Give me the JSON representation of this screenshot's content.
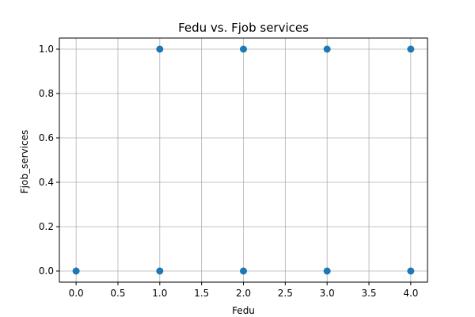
{
  "chart_data": {
    "type": "scatter",
    "title": "Fedu vs. Fjob services",
    "xlabel": "Fedu",
    "ylabel": "Fjob_services",
    "xlim": [
      -0.2,
      4.2
    ],
    "ylim": [
      -0.05,
      1.05
    ],
    "xticks": [
      0.0,
      0.5,
      1.0,
      1.5,
      2.0,
      2.5,
      3.0,
      3.5,
      4.0
    ],
    "xtick_labels": [
      "0.0",
      "0.5",
      "1.0",
      "1.5",
      "2.0",
      "2.5",
      "3.0",
      "3.5",
      "4.0"
    ],
    "yticks": [
      0.0,
      0.2,
      0.4,
      0.6,
      0.8,
      1.0
    ],
    "ytick_labels": [
      "0.0",
      "0.2",
      "0.4",
      "0.6",
      "0.8",
      "1.0"
    ],
    "grid": true,
    "marker_color": "#1f77b4",
    "points": [
      {
        "x": 0,
        "y": 0
      },
      {
        "x": 1,
        "y": 0
      },
      {
        "x": 1,
        "y": 1
      },
      {
        "x": 2,
        "y": 0
      },
      {
        "x": 2,
        "y": 1
      },
      {
        "x": 3,
        "y": 0
      },
      {
        "x": 3,
        "y": 1
      },
      {
        "x": 4,
        "y": 0
      },
      {
        "x": 4,
        "y": 1
      }
    ]
  }
}
